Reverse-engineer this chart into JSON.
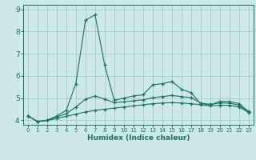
{
  "xlabel": "Humidex (Indice chaleur)",
  "bg_color": "#cce8e8",
  "grid_color": "#aacccc",
  "line_color": "#1a7060",
  "x": [
    0,
    1,
    2,
    3,
    4,
    5,
    6,
    7,
    8,
    9,
    10,
    11,
    12,
    13,
    14,
    15,
    16,
    17,
    18,
    19,
    20,
    21,
    22,
    23
  ],
  "y_top": [
    4.2,
    3.95,
    4.0,
    4.2,
    4.45,
    5.65,
    8.5,
    8.75,
    6.5,
    4.9,
    5.0,
    5.1,
    5.15,
    5.6,
    5.65,
    5.75,
    5.4,
    5.25,
    4.75,
    4.7,
    4.85,
    4.85,
    4.75,
    4.4
  ],
  "y_mid": [
    4.2,
    3.95,
    4.0,
    4.15,
    4.3,
    4.6,
    4.95,
    5.1,
    4.95,
    4.8,
    4.83,
    4.88,
    4.92,
    5.02,
    5.07,
    5.12,
    5.07,
    5.02,
    4.78,
    4.72,
    4.78,
    4.78,
    4.68,
    4.38
  ],
  "y_bot": [
    4.2,
    3.95,
    4.0,
    4.08,
    4.18,
    4.28,
    4.38,
    4.45,
    4.5,
    4.55,
    4.6,
    4.65,
    4.7,
    4.75,
    4.78,
    4.8,
    4.78,
    4.75,
    4.7,
    4.65,
    4.68,
    4.68,
    4.6,
    4.35
  ],
  "ylim": [
    3.8,
    9.2
  ],
  "xlim": [
    -0.5,
    23.5
  ],
  "yticks": [
    4,
    5,
    6,
    7,
    8,
    9
  ],
  "xtick_fontsize": 5.0,
  "ytick_fontsize": 6.5,
  "xlabel_fontsize": 6.5
}
